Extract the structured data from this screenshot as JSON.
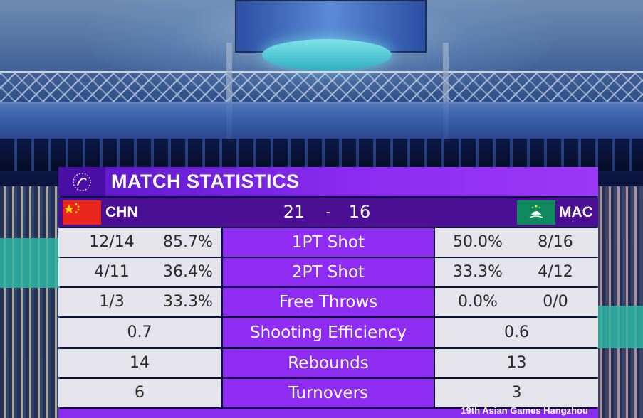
{
  "title": "MATCH STATISTICS",
  "home": {
    "code": "CHN",
    "score": "21",
    "flag_color": "#e8261e"
  },
  "away": {
    "code": "MAC",
    "score": "16",
    "flag_color": "#0f8a5e"
  },
  "score_separator": "-",
  "stats": [
    {
      "label": "1PT Shot",
      "home_made": "12/14",
      "home_pct": "85.7%",
      "away_pct": "50.0%",
      "away_made": "8/16"
    },
    {
      "label": "2PT Shot",
      "home_made": "4/11",
      "home_pct": "36.4%",
      "away_pct": "33.3%",
      "away_made": "4/12"
    },
    {
      "label": "Free Throws",
      "home_made": "1/3",
      "home_pct": "33.3%",
      "away_pct": "0.0%",
      "away_made": "0/0"
    },
    {
      "label": "Shooting Efficiency",
      "home": "0.7",
      "away": "0.6"
    },
    {
      "label": "Rebounds",
      "home": "14",
      "away": "13"
    },
    {
      "label": "Turnovers",
      "home": "6",
      "away": "3"
    }
  ],
  "footer": "19th Asian Games Hangzhou",
  "colors": {
    "title_purple": "#8a2cf0",
    "score_bar": "#4b0f94",
    "label_purple": "#8f2cf2",
    "cell_gray": "#e4e4ea"
  },
  "icons": {
    "logo": "asian-games-logo-icon",
    "home_flag": "china-flag-icon",
    "away_flag": "macau-flag-icon"
  }
}
